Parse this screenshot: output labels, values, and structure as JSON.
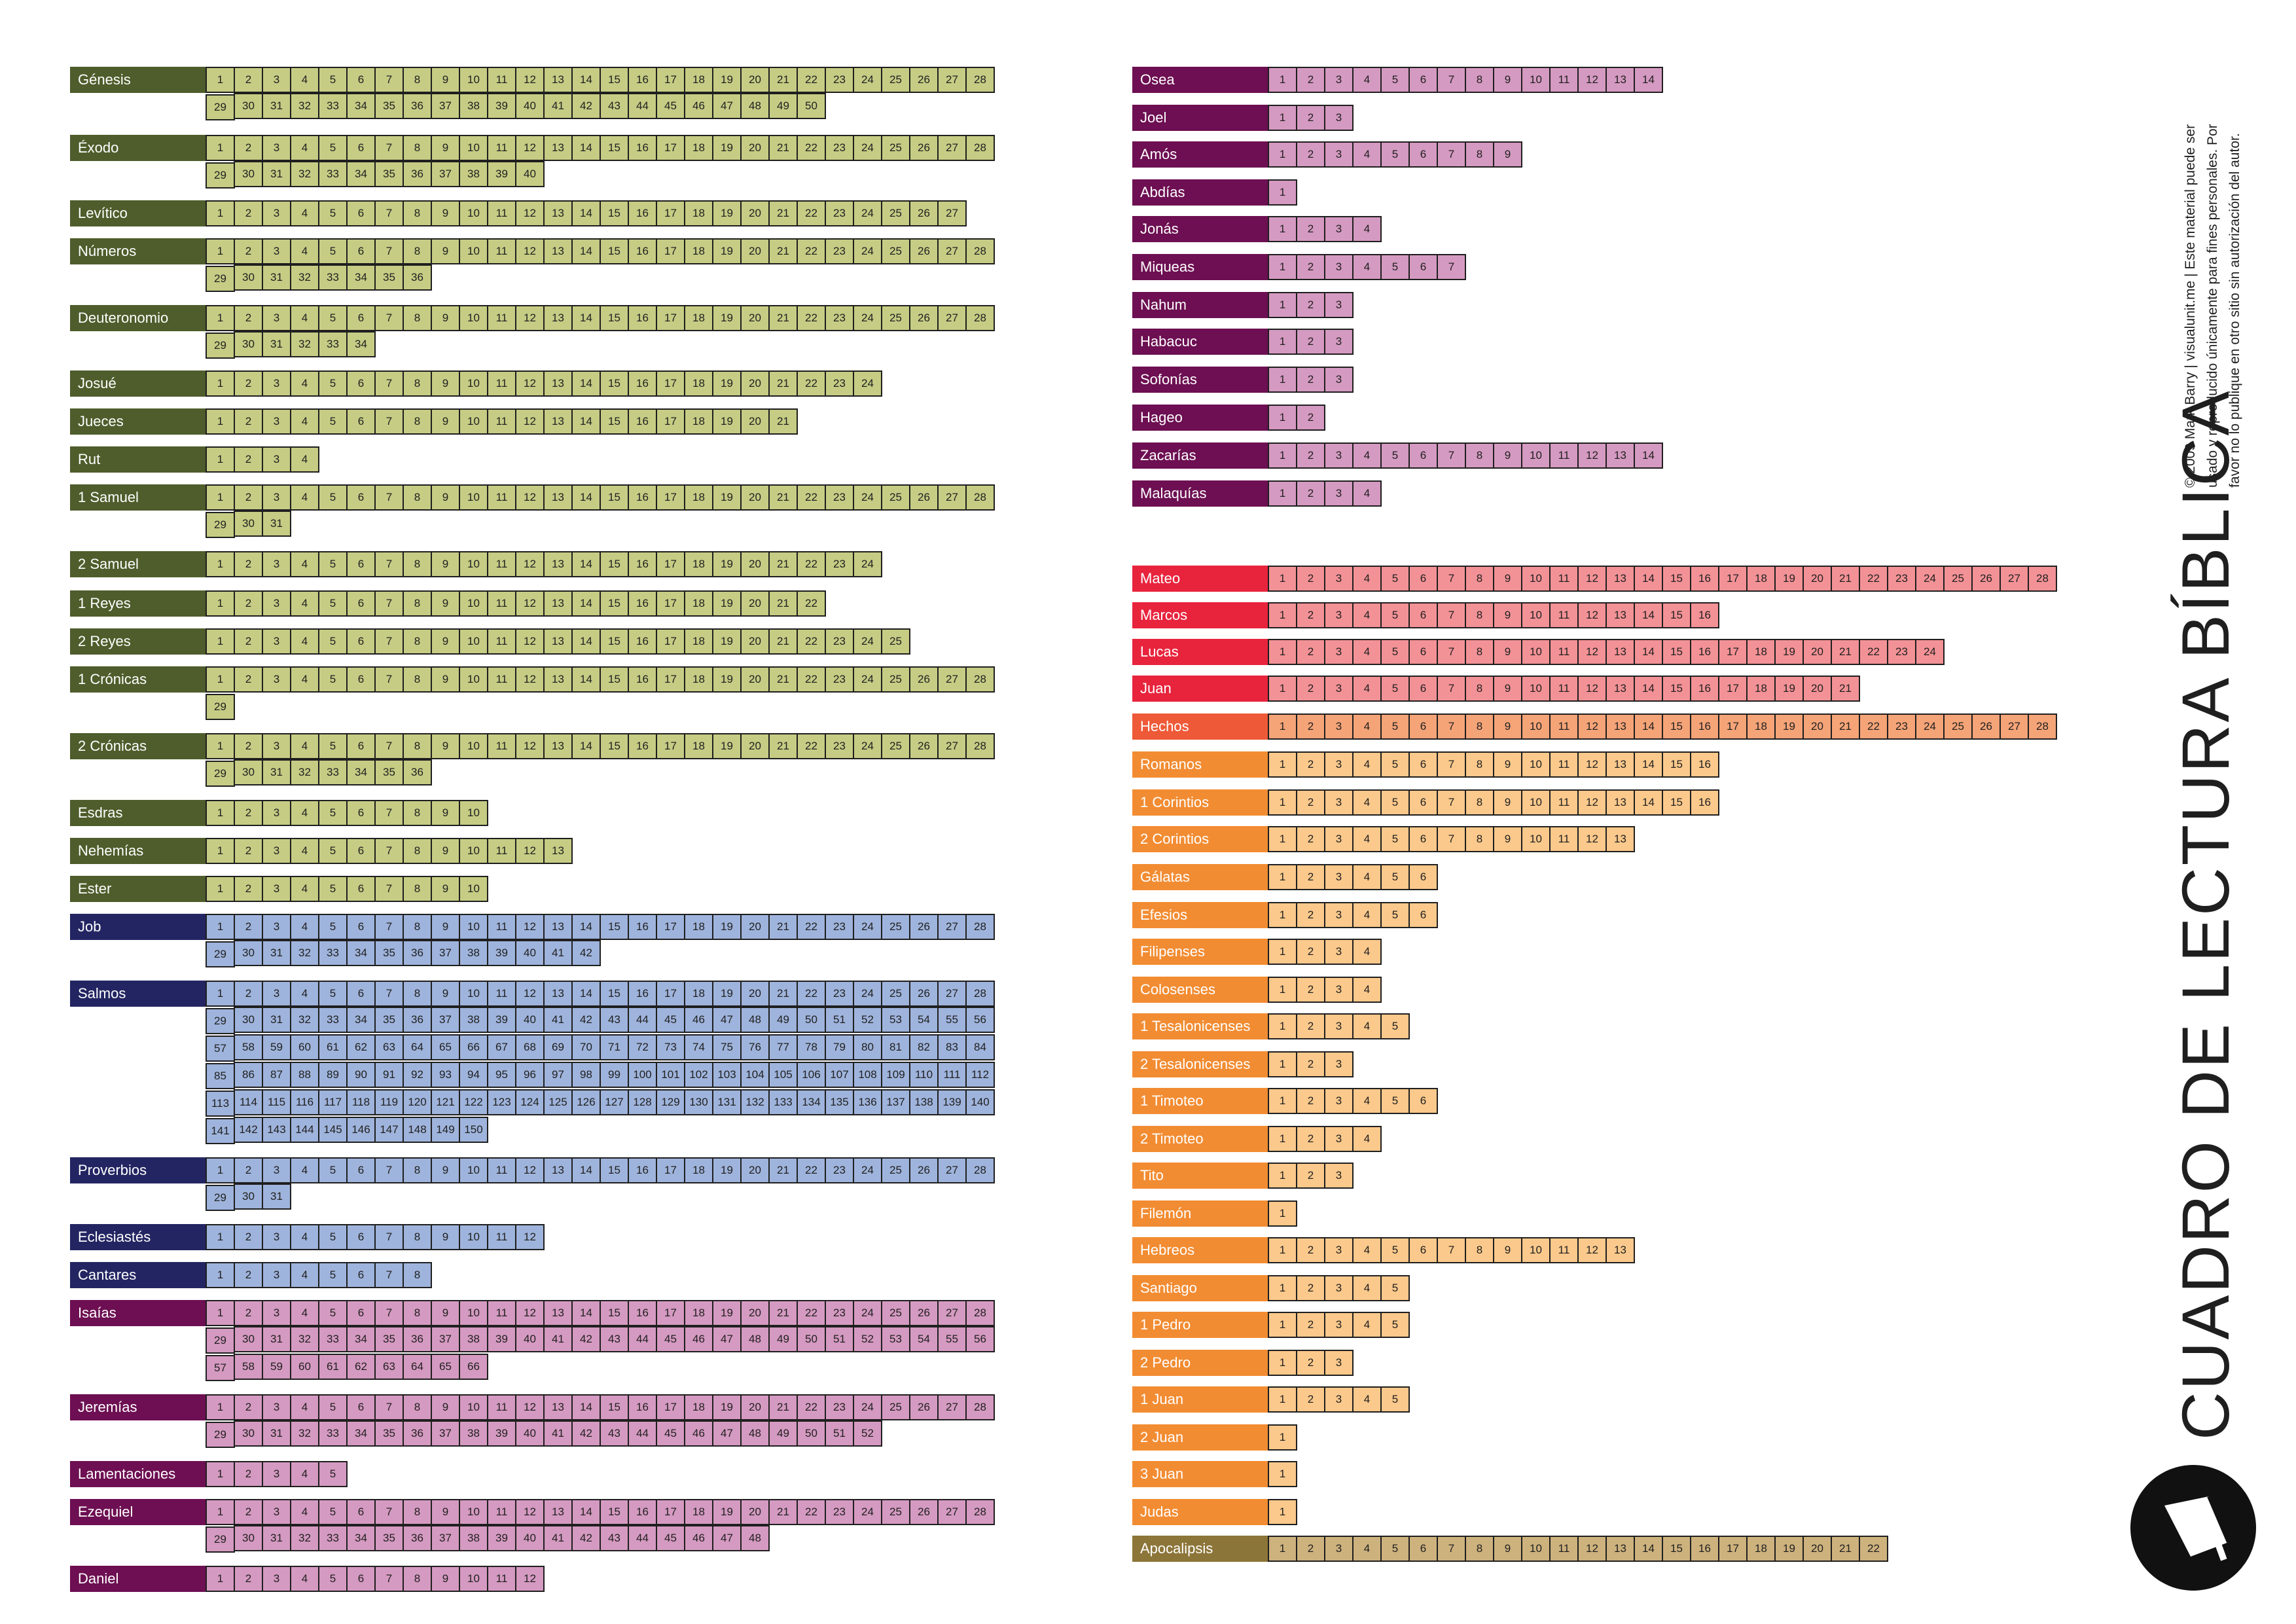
{
  "header": {
    "title": "CUADRO DE LECTURA BÍBLICA",
    "credit_lines": [
      "© 2009 Mark Barry | visualunit.me | Este material puede ser",
      "usado y reproducido únicamente para fines personales. Por",
      "favor no lo publique en otro sitio sin autorización del autor."
    ]
  },
  "group_colors": {
    "law_history": {
      "label": "#4e5d2b",
      "cell": "#c6cc84"
    },
    "poetry": {
      "label": "#232562",
      "cell": "#9fb4dc"
    },
    "prophets": {
      "label": "#6d0f52",
      "cell": "#d59ac1"
    },
    "gospels": {
      "label": "#e8243d",
      "cell": "#f39296"
    },
    "acts": {
      "label": "#ee5938",
      "cell": "#f5a478"
    },
    "epistles": {
      "label": "#f28c32",
      "cell": "#fbc98c"
    },
    "revelation": {
      "label": "#8c7538",
      "cell": "#cdb27e"
    }
  },
  "columns": [
    {
      "books": [
        {
          "name": "Génesis",
          "chapters": 50,
          "group": "law_history"
        },
        {
          "name": "Éxodo",
          "chapters": 40,
          "group": "law_history"
        },
        {
          "name": "Levítico",
          "chapters": 27,
          "group": "law_history"
        },
        {
          "name": "Números",
          "chapters": 36,
          "group": "law_history"
        },
        {
          "name": "Deuteronomio",
          "chapters": 34,
          "group": "law_history"
        },
        {
          "name": "Josué",
          "chapters": 24,
          "group": "law_history"
        },
        {
          "name": "Jueces",
          "chapters": 21,
          "group": "law_history"
        },
        {
          "name": "Rut",
          "chapters": 4,
          "group": "law_history"
        },
        {
          "name": "1 Samuel",
          "chapters": 31,
          "group": "law_history"
        },
        {
          "name": "2 Samuel",
          "chapters": 24,
          "group": "law_history"
        },
        {
          "name": "1 Reyes",
          "chapters": 22,
          "group": "law_history"
        },
        {
          "name": "2 Reyes",
          "chapters": 25,
          "group": "law_history"
        },
        {
          "name": "1 Crónicas",
          "chapters": 29,
          "group": "law_history"
        },
        {
          "name": "2 Crónicas",
          "chapters": 36,
          "group": "law_history"
        },
        {
          "name": "Esdras",
          "chapters": 10,
          "group": "law_history"
        },
        {
          "name": "Nehemías",
          "chapters": 13,
          "group": "law_history"
        },
        {
          "name": "Ester",
          "chapters": 10,
          "group": "law_history"
        },
        {
          "name": "Job",
          "chapters": 42,
          "group": "poetry"
        },
        {
          "name": "Salmos",
          "chapters": 150,
          "group": "poetry"
        },
        {
          "name": "Proverbios",
          "chapters": 31,
          "group": "poetry"
        },
        {
          "name": "Eclesiastés",
          "chapters": 12,
          "group": "poetry"
        },
        {
          "name": "Cantares",
          "chapters": 8,
          "group": "poetry"
        },
        {
          "name": "Isaías",
          "chapters": 66,
          "group": "prophets"
        },
        {
          "name": "Jeremías",
          "chapters": 52,
          "group": "prophets"
        },
        {
          "name": "Lamentaciones",
          "chapters": 5,
          "group": "prophets"
        },
        {
          "name": "Ezequiel",
          "chapters": 48,
          "group": "prophets"
        },
        {
          "name": "Daniel",
          "chapters": 12,
          "group": "prophets"
        }
      ]
    },
    {
      "books": [
        {
          "name": "Osea",
          "chapters": 14,
          "group": "prophets"
        },
        {
          "name": "Joel",
          "chapters": 3,
          "group": "prophets"
        },
        {
          "name": "Amós",
          "chapters": 9,
          "group": "prophets"
        },
        {
          "name": "Abdías",
          "chapters": 1,
          "group": "prophets"
        },
        {
          "name": "Jonás",
          "chapters": 4,
          "group": "prophets"
        },
        {
          "name": "Miqueas",
          "chapters": 7,
          "group": "prophets"
        },
        {
          "name": "Nahum",
          "chapters": 3,
          "group": "prophets"
        },
        {
          "name": "Habacuc",
          "chapters": 3,
          "group": "prophets"
        },
        {
          "name": "Sofonías",
          "chapters": 3,
          "group": "prophets"
        },
        {
          "name": "Hageo",
          "chapters": 2,
          "group": "prophets"
        },
        {
          "name": "Zacarías",
          "chapters": 14,
          "group": "prophets"
        },
        {
          "name": "Malaquías",
          "chapters": 4,
          "group": "prophets"
        },
        {
          "name": "Mateo",
          "chapters": 28,
          "group": "gospels"
        },
        {
          "name": "Marcos",
          "chapters": 16,
          "group": "gospels"
        },
        {
          "name": "Lucas",
          "chapters": 24,
          "group": "gospels"
        },
        {
          "name": "Juan",
          "chapters": 21,
          "group": "gospels"
        },
        {
          "name": "Hechos",
          "chapters": 28,
          "group": "acts"
        },
        {
          "name": "Romanos",
          "chapters": 16,
          "group": "epistles"
        },
        {
          "name": "1 Corintios",
          "chapters": 16,
          "group": "epistles"
        },
        {
          "name": "2 Corintios",
          "chapters": 13,
          "group": "epistles"
        },
        {
          "name": "Gálatas",
          "chapters": 6,
          "group": "epistles"
        },
        {
          "name": "Efesios",
          "chapters": 6,
          "group": "epistles"
        },
        {
          "name": "Filipenses",
          "chapters": 4,
          "group": "epistles"
        },
        {
          "name": "Colosenses",
          "chapters": 4,
          "group": "epistles"
        },
        {
          "name": "1 Tesalonicenses",
          "chapters": 5,
          "group": "epistles"
        },
        {
          "name": "2 Tesalonicenses",
          "chapters": 3,
          "group": "epistles"
        },
        {
          "name": "1 Timoteo",
          "chapters": 6,
          "group": "epistles"
        },
        {
          "name": "2 Timoteo",
          "chapters": 4,
          "group": "epistles"
        },
        {
          "name": "Tito",
          "chapters": 3,
          "group": "epistles"
        },
        {
          "name": "Filemón",
          "chapters": 1,
          "group": "epistles"
        },
        {
          "name": "Hebreos",
          "chapters": 13,
          "group": "epistles"
        },
        {
          "name": "Santiago",
          "chapters": 5,
          "group": "epistles"
        },
        {
          "name": "1 Pedro",
          "chapters": 5,
          "group": "epistles"
        },
        {
          "name": "2 Pedro",
          "chapters": 3,
          "group": "epistles"
        },
        {
          "name": "1 Juan",
          "chapters": 5,
          "group": "epistles"
        },
        {
          "name": "2 Juan",
          "chapters": 1,
          "group": "epistles"
        },
        {
          "name": "3 Juan",
          "chapters": 1,
          "group": "epistles"
        },
        {
          "name": "Judas",
          "chapters": 1,
          "group": "epistles"
        },
        {
          "name": "Apocalipsis",
          "chapters": 22,
          "group": "revelation"
        }
      ]
    }
  ]
}
